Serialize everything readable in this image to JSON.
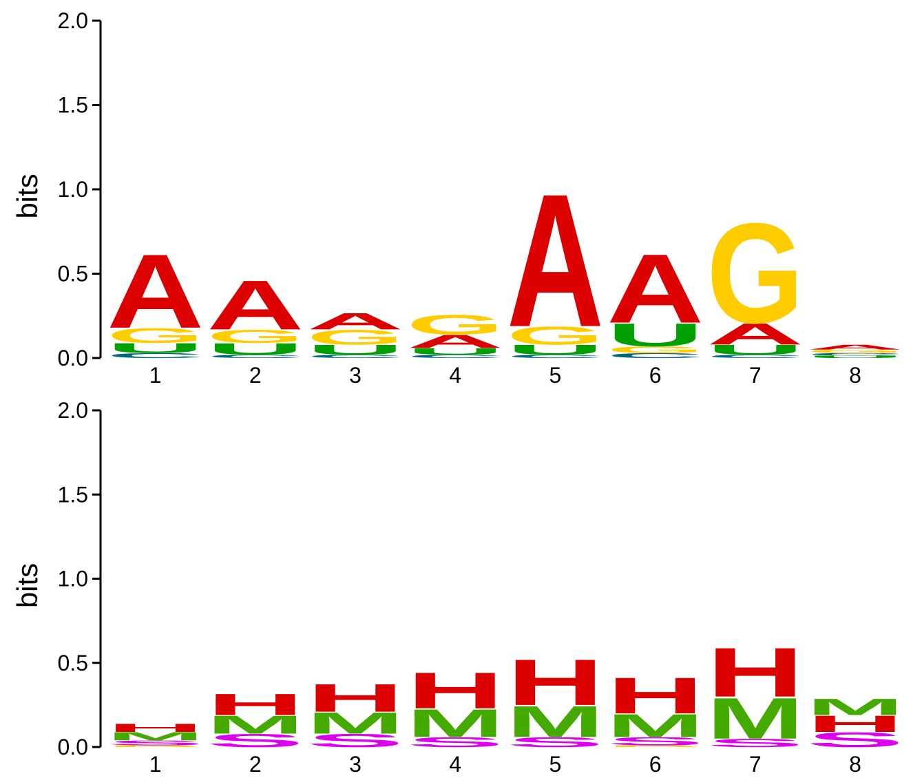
{
  "colors": {
    "A": "#dd0000",
    "G": "#ffcc00",
    "U": "#00a000",
    "C": "#006680",
    "H": "#dd0000",
    "M": "#44aa00",
    "S": "#dd00ee",
    "B": "#ffcc00"
  },
  "chart_data": [
    {
      "type": "sequence-logo",
      "ylabel": "bits",
      "ylim": [
        0,
        2.0
      ],
      "yticks": [
        "0.0",
        "0.5",
        "1.0",
        "1.5",
        "2.0"
      ],
      "positions": [
        "1",
        "2",
        "3",
        "4",
        "5",
        "6",
        "7",
        "8"
      ],
      "stacks": [
        [
          {
            "letter": "C",
            "bits": 0.03
          },
          {
            "letter": "U",
            "bits": 0.06
          },
          {
            "letter": "G",
            "bits": 0.09
          },
          {
            "letter": "A",
            "bits": 0.45
          }
        ],
        [
          {
            "letter": "C",
            "bits": 0.02
          },
          {
            "letter": "U",
            "bits": 0.07
          },
          {
            "letter": "G",
            "bits": 0.08
          },
          {
            "letter": "A",
            "bits": 0.3
          }
        ],
        [
          {
            "letter": "C",
            "bits": 0.02
          },
          {
            "letter": "U",
            "bits": 0.06
          },
          {
            "letter": "G",
            "bits": 0.09
          },
          {
            "letter": "A",
            "bits": 0.1
          }
        ],
        [
          {
            "letter": "C",
            "bits": 0.02
          },
          {
            "letter": "U",
            "bits": 0.04
          },
          {
            "letter": "A",
            "bits": 0.08
          },
          {
            "letter": "G",
            "bits": 0.12
          }
        ],
        [
          {
            "letter": "C",
            "bits": 0.02
          },
          {
            "letter": "U",
            "bits": 0.06
          },
          {
            "letter": "G",
            "bits": 0.11
          },
          {
            "letter": "A",
            "bits": 0.81
          }
        ],
        [
          {
            "letter": "C",
            "bits": 0.03
          },
          {
            "letter": "G",
            "bits": 0.04
          },
          {
            "letter": "U",
            "bits": 0.14
          },
          {
            "letter": "A",
            "bits": 0.42
          }
        ],
        [
          {
            "letter": "C",
            "bits": 0.02
          },
          {
            "letter": "U",
            "bits": 0.06
          },
          {
            "letter": "A",
            "bits": 0.13
          },
          {
            "letter": "G",
            "bits": 0.61
          }
        ],
        [
          {
            "letter": "U",
            "bits": 0.015
          },
          {
            "letter": "C",
            "bits": 0.015
          },
          {
            "letter": "G",
            "bits": 0.02
          },
          {
            "letter": "A",
            "bits": 0.03
          }
        ]
      ]
    },
    {
      "type": "sequence-logo",
      "ylabel": "bits",
      "ylim": [
        0,
        2.0
      ],
      "yticks": [
        "0.0",
        "0.5",
        "1.0",
        "1.5",
        "2.0"
      ],
      "positions": [
        "1",
        "2",
        "3",
        "4",
        "5",
        "6",
        "7",
        "8"
      ],
      "stacks": [
        [
          {
            "letter": "B",
            "bits": 0.01
          },
          {
            "letter": "S",
            "bits": 0.03
          },
          {
            "letter": "M",
            "bits": 0.05
          },
          {
            "letter": "H",
            "bits": 0.05
          }
        ],
        [
          {
            "letter": "S",
            "bits": 0.08
          },
          {
            "letter": "M",
            "bits": 0.11
          },
          {
            "letter": "H",
            "bits": 0.13
          }
        ],
        [
          {
            "letter": "S",
            "bits": 0.08
          },
          {
            "letter": "M",
            "bits": 0.13
          },
          {
            "letter": "H",
            "bits": 0.17
          }
        ],
        [
          {
            "letter": "S",
            "bits": 0.06
          },
          {
            "letter": "M",
            "bits": 0.17
          },
          {
            "letter": "H",
            "bits": 0.22
          }
        ],
        [
          {
            "letter": "S",
            "bits": 0.06
          },
          {
            "letter": "M",
            "bits": 0.19
          },
          {
            "letter": "H",
            "bits": 0.28
          }
        ],
        [
          {
            "letter": "B",
            "bits": 0.01
          },
          {
            "letter": "S",
            "bits": 0.05
          },
          {
            "letter": "M",
            "bits": 0.14
          },
          {
            "letter": "H",
            "bits": 0.22
          }
        ],
        [
          {
            "letter": "S",
            "bits": 0.05
          },
          {
            "letter": "M",
            "bits": 0.25
          },
          {
            "letter": "H",
            "bits": 0.3
          }
        ],
        [
          {
            "letter": "S",
            "bits": 0.09
          },
          {
            "letter": "H",
            "bits": 0.1
          },
          {
            "letter": "M",
            "bits": 0.1
          }
        ]
      ]
    }
  ]
}
